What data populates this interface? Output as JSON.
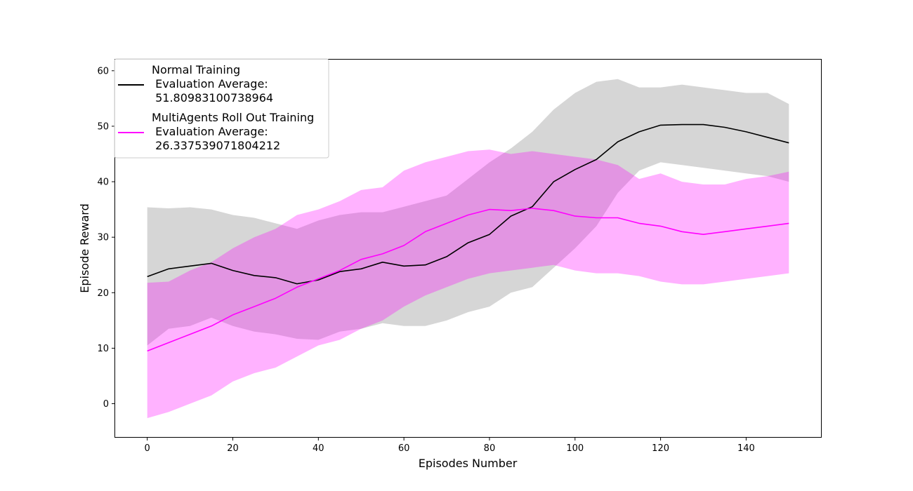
{
  "chart_data": {
    "type": "line",
    "title": "",
    "xlabel": "Episodes Number",
    "ylabel": "Episode Reward",
    "xlim": [
      -7.5,
      157.5
    ],
    "ylim": [
      -6,
      62
    ],
    "xticks": [
      0,
      20,
      40,
      60,
      80,
      100,
      120,
      140
    ],
    "yticks": [
      0,
      10,
      20,
      30,
      40,
      50,
      60
    ],
    "grid": false,
    "legend_position": "top-left",
    "series": [
      {
        "name": "Normal Training\n Evaluation Average:\n 51.80983100738964",
        "color": "#000000",
        "band_color": "#808080",
        "x": [
          0,
          5,
          10,
          15,
          20,
          25,
          30,
          35,
          40,
          45,
          50,
          55,
          60,
          65,
          70,
          75,
          80,
          85,
          90,
          95,
          100,
          105,
          110,
          115,
          120,
          125,
          130,
          135,
          140,
          145,
          150
        ],
        "mean": [
          22.9,
          24.3,
          24.8,
          25.3,
          24.0,
          23.1,
          22.7,
          21.6,
          22.3,
          23.8,
          24.3,
          25.5,
          24.8,
          25.0,
          26.5,
          29.0,
          30.5,
          33.8,
          35.5,
          40.0,
          42.2,
          44.0,
          47.2,
          49.0,
          50.2,
          50.3,
          50.3,
          49.8,
          49.0,
          48.0,
          47.0
        ],
        "upper": [
          35.4,
          35.2,
          35.4,
          35.0,
          34.0,
          33.5,
          32.5,
          31.5,
          33.0,
          34.0,
          34.5,
          34.5,
          35.5,
          36.5,
          37.5,
          40.5,
          43.5,
          46.0,
          49.0,
          53.0,
          56.0,
          58.0,
          58.5,
          57.0,
          57.0,
          57.5,
          57.0,
          56.5,
          56.0,
          56.0,
          54.0
        ],
        "lower": [
          10.5,
          13.5,
          14.0,
          15.5,
          14.0,
          13.0,
          12.5,
          11.7,
          11.5,
          13.0,
          13.5,
          14.5,
          14.0,
          14.0,
          15.0,
          16.5,
          17.5,
          20.0,
          21.0,
          24.5,
          28.0,
          32.0,
          38.0,
          42.0,
          43.5,
          43.0,
          42.5,
          42.0,
          41.5,
          41.0,
          40.0
        ]
      },
      {
        "name": "MultiAgents Roll Out Training\n Evaluation Average:\n 26.337539071804212",
        "color": "#ff00ff",
        "band_color": "#ff00ff",
        "x": [
          0,
          5,
          10,
          15,
          20,
          25,
          30,
          35,
          40,
          45,
          50,
          55,
          60,
          65,
          70,
          75,
          80,
          85,
          90,
          95,
          100,
          105,
          110,
          115,
          120,
          125,
          130,
          135,
          140,
          145,
          150
        ],
        "mean": [
          9.5,
          11.0,
          12.5,
          14.0,
          16.0,
          17.5,
          19.0,
          21.0,
          22.5,
          24.0,
          26.0,
          27.0,
          28.5,
          31.0,
          32.5,
          34.0,
          35.0,
          34.8,
          35.2,
          34.8,
          33.8,
          33.5,
          33.5,
          32.5,
          32.0,
          31.0,
          30.5,
          31.0,
          31.5,
          32.0,
          32.5
        ],
        "upper": [
          21.8,
          22.0,
          24.0,
          25.5,
          28.0,
          30.0,
          31.5,
          34.0,
          35.0,
          36.5,
          38.5,
          39.0,
          42.0,
          43.5,
          44.5,
          45.5,
          45.8,
          45.0,
          45.5,
          45.0,
          44.5,
          44.0,
          43.0,
          40.5,
          41.5,
          40.0,
          39.5,
          39.5,
          40.5,
          41.0,
          41.8
        ],
        "lower": [
          -2.6,
          -1.5,
          0.0,
          1.5,
          4.0,
          5.5,
          6.5,
          8.5,
          10.5,
          11.5,
          13.5,
          15.0,
          17.5,
          19.5,
          21.0,
          22.5,
          23.5,
          24.0,
          24.5,
          25.0,
          24.0,
          23.5,
          23.5,
          23.0,
          22.0,
          21.5,
          21.5,
          22.0,
          22.5,
          23.0,
          23.5
        ]
      }
    ]
  }
}
